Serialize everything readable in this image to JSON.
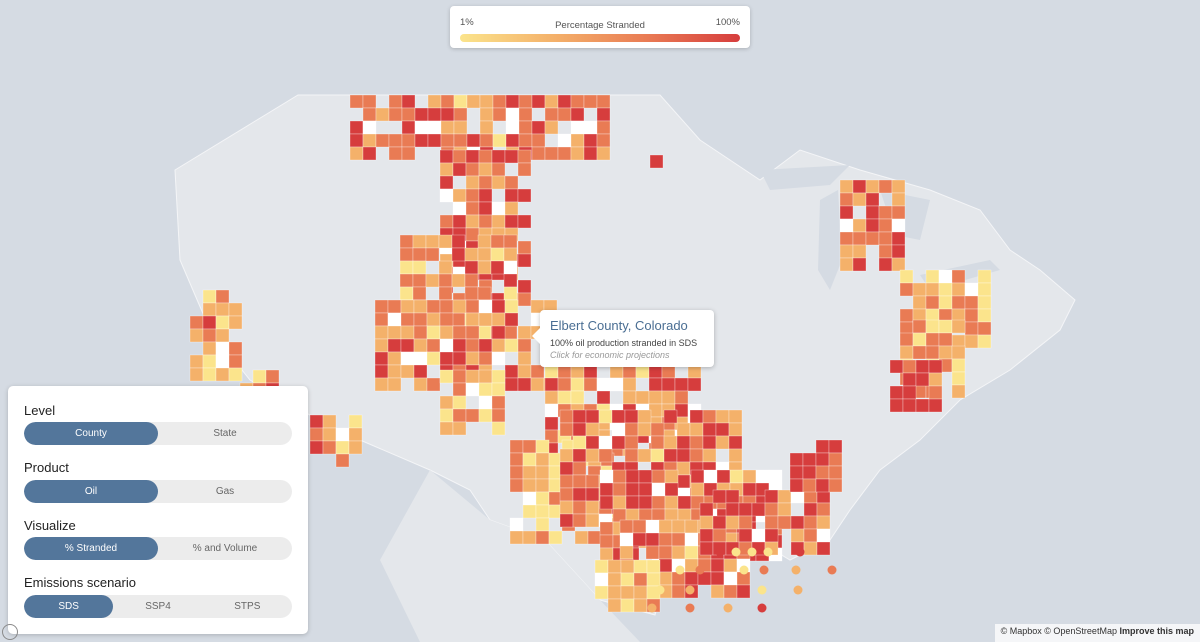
{
  "legend": {
    "min_label": "1%",
    "title": "Percentage Stranded",
    "max_label": "100%",
    "gradient": [
      "#fbe48c",
      "#f4b16a",
      "#e97b54",
      "#d63d3d"
    ]
  },
  "popup": {
    "title": "Elbert County, Colorado",
    "line": "100% oil production stranded in SDS",
    "link": "Click for economic projections"
  },
  "controls": {
    "level": {
      "label": "Level",
      "options": [
        "County",
        "State"
      ],
      "selected": "County"
    },
    "product": {
      "label": "Product",
      "options": [
        "Oil",
        "Gas"
      ],
      "selected": "Oil"
    },
    "visualize": {
      "label": "Visualize",
      "options": [
        "% Stranded",
        "% and Volume"
      ],
      "selected": "% Stranded"
    },
    "scenario": {
      "label": "Emissions scenario",
      "options": [
        "SDS",
        "SSP4",
        "STPS"
      ],
      "selected": "SDS"
    }
  },
  "attribution": {
    "mapbox": "© Mapbox",
    "osm": "© OpenStreetMap",
    "improve": "Improve this map"
  },
  "colors": {
    "water": "#d5dbe3",
    "land": "#e4e7eb",
    "selected": "#53769b",
    "scale": [
      "#fbe48c",
      "#f4b16a",
      "#e97b54",
      "#d63d3d"
    ]
  }
}
